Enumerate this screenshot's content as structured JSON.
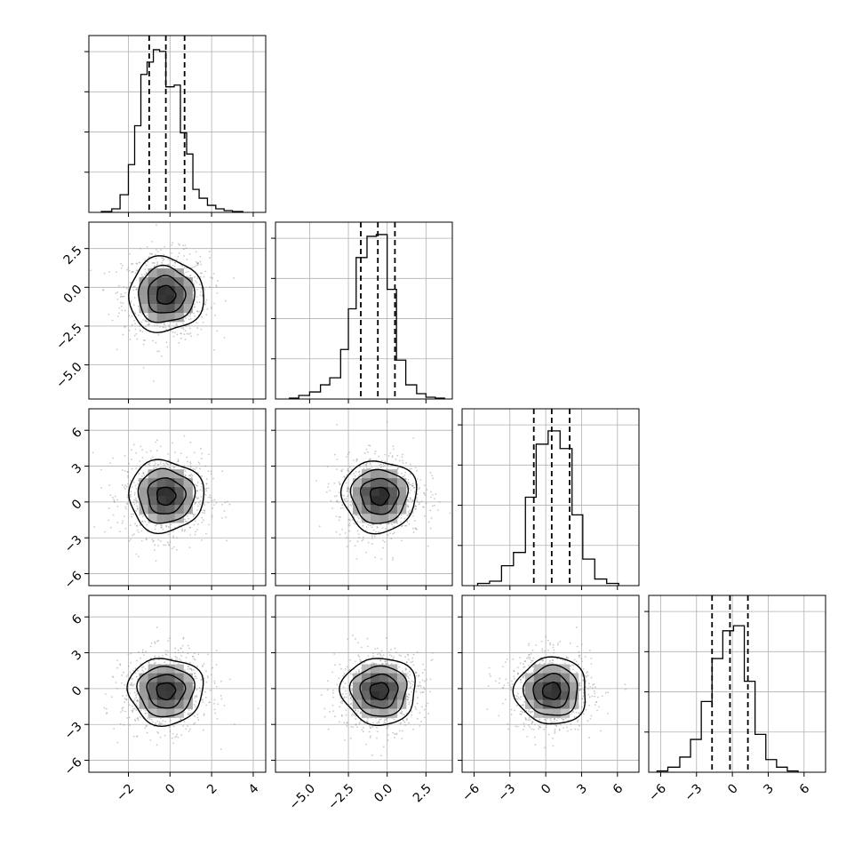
{
  "chart_data": {
    "type": "corner",
    "title": "",
    "n_params": 4,
    "variables": [
      {
        "ticks": [
          -2,
          0,
          2,
          4
        ],
        "tick_labels": [
          "−2",
          "0",
          "2",
          "4"
        ],
        "xlim": [
          -3.9,
          4.6
        ]
      },
      {
        "ticks": [
          -5.0,
          -2.5,
          0.0,
          2.5
        ],
        "tick_labels": [
          "−5.0",
          "−2.5",
          "0.0",
          "2.5"
        ],
        "xlim": [
          -7.2,
          4.2
        ]
      },
      {
        "ticks": [
          -6,
          -3,
          0,
          3,
          6
        ],
        "tick_labels": [
          "−6",
          "−3",
          "0",
          "3",
          "6"
        ],
        "xlim": [
          -7.0,
          7.8
        ]
      },
      {
        "ticks": [
          -6,
          -3,
          0,
          3,
          6
        ],
        "tick_labels": [
          "−6",
          "−3",
          "0",
          "3",
          "6"
        ],
        "xlim": [
          -7.0,
          7.8
        ]
      }
    ],
    "diagonal_histograms": [
      {
        "bins": [
          -3.3,
          -2.8,
          -2.4,
          -2.0,
          -1.7,
          -1.4,
          -1.1,
          -0.8,
          -0.5,
          -0.2,
          0.2,
          0.5,
          0.8,
          1.1,
          1.4,
          1.8,
          2.2,
          2.6,
          3.0,
          3.5
        ],
        "counts": [
          0.5,
          2,
          10,
          27,
          49,
          78,
          85,
          92,
          91,
          71,
          72,
          45,
          33,
          13,
          8,
          4,
          2,
          1,
          0.5
        ],
        "ymax": 100,
        "quantiles": [
          -1.0,
          -0.2,
          0.7
        ]
      },
      {
        "bins": [
          -6.3,
          -5.7,
          -5.0,
          -4.3,
          -3.7,
          -3.0,
          -2.5,
          -2.0,
          -1.3,
          -0.7,
          0.0,
          0.6,
          1.2,
          1.9,
          2.5,
          3.1,
          3.7
        ],
        "counts": [
          0.5,
          2,
          4,
          8,
          12,
          28,
          51,
          80,
          92,
          93,
          62,
          22,
          8,
          3,
          1,
          0.5
        ],
        "ymax": 100,
        "quantiles": [
          -1.7,
          -0.6,
          0.5
        ]
      },
      {
        "bins": [
          -5.7,
          -4.7,
          -3.7,
          -2.7,
          -1.7,
          -0.8,
          0.2,
          1.2,
          2.2,
          3.1,
          4.1,
          5.1,
          6.1
        ],
        "counts": [
          1,
          2,
          9,
          15,
          40,
          64,
          70,
          62,
          32,
          12,
          3,
          1
        ],
        "ymax": 80,
        "quantiles": [
          -1.0,
          0.5,
          2.0
        ]
      },
      {
        "bins": [
          -6.3,
          -5.4,
          -4.4,
          -3.5,
          -2.6,
          -1.7,
          -0.8,
          0.1,
          1.0,
          1.9,
          2.8,
          3.7,
          4.6,
          5.5
        ],
        "counts": [
          0.5,
          2,
          6,
          13,
          28,
          45,
          56,
          58,
          36,
          15,
          5,
          2,
          0.5
        ],
        "ymax": 70,
        "quantiles": [
          -1.7,
          -0.2,
          1.3
        ]
      }
    ],
    "joint_panels": [
      {
        "row": 1,
        "col": 0,
        "center": [
          -0.2,
          -0.5
        ],
        "sigma": [
          0.9,
          1.2
        ],
        "corr": 0.0
      },
      {
        "row": 2,
        "col": 0,
        "center": [
          -0.2,
          0.5
        ],
        "sigma": [
          0.9,
          1.5
        ],
        "corr": 0.0
      },
      {
        "row": 2,
        "col": 1,
        "center": [
          -0.5,
          0.5
        ],
        "sigma": [
          1.2,
          1.5
        ],
        "corr": 0.05
      },
      {
        "row": 3,
        "col": 0,
        "center": [
          -0.2,
          -0.2
        ],
        "sigma": [
          0.9,
          1.4
        ],
        "corr": 0.0
      },
      {
        "row": 3,
        "col": 1,
        "center": [
          -0.5,
          -0.2
        ],
        "sigma": [
          1.2,
          1.4
        ],
        "corr": 0.1
      },
      {
        "row": 3,
        "col": 2,
        "center": [
          0.5,
          -0.2
        ],
        "sigma": [
          1.5,
          1.4
        ],
        "corr": 0.0
      }
    ],
    "contour_levels_sigma": [
      0.5,
      1.0,
      1.5,
      2.0
    ],
    "quantile_line_style": "dashed",
    "grid": true,
    "legend": "none"
  }
}
